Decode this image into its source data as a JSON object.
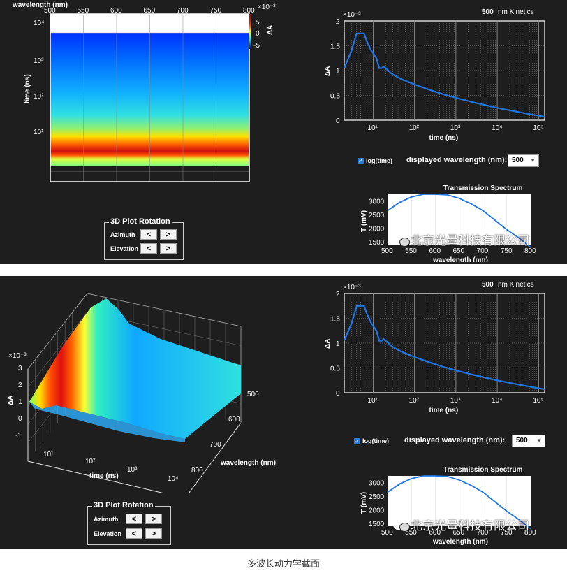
{
  "top_panel": {
    "heatmap": {
      "xlabel": "wavelength (nm)",
      "x_ticks": [
        "500",
        "550",
        "600",
        "650",
        "700",
        "750",
        "800"
      ],
      "ylabel": "time (ns)",
      "y_ticks": [
        "10⁴",
        "10³",
        "10²",
        "10¹"
      ],
      "colorbar_label": "ΔA",
      "colorbar_exponent": "×10⁻³",
      "colorbar_ticks": [
        "5",
        "0",
        "-5"
      ]
    },
    "kinetics": {
      "title_value": "500",
      "title_suffix": "nm Kinetics",
      "y_exponent": "×10⁻³",
      "ylabel": "ΔA",
      "xlabel": "time (ns)",
      "y_ticks": [
        "2",
        "1.5",
        "1",
        "0.5",
        "0"
      ],
      "x_ticks": [
        "10¹",
        "10²",
        "10³",
        "10⁴",
        "10⁵"
      ]
    },
    "controls": {
      "log_label": "log(time)",
      "log_checked": true,
      "wavelength_label": "displayed wavelength (nm):",
      "wavelength_value": "500"
    },
    "spectrum": {
      "title": "Transmission Spectrum",
      "ylabel": "T (mV)",
      "xlabel": "wavelength (nm)",
      "y_ticks": [
        "3000",
        "2500",
        "2000",
        "1500"
      ],
      "x_ticks": [
        "500",
        "550",
        "600",
        "650",
        "700",
        "750",
        "800"
      ]
    },
    "rotation": {
      "title": "3D Plot Rotation",
      "azimuth_label": "Azimuth",
      "elevation_label": "Elevation",
      "left_btn": "<",
      "right_btn": ">"
    },
    "watermark": "北京光量科技有限公司"
  },
  "bottom_panel": {
    "surface": {
      "zlabel": "ΔA",
      "z_exponent": "×10⁻³",
      "z_ticks": [
        "3",
        "2",
        "1",
        "0",
        "-1"
      ],
      "time_label": "time (ns)",
      "time_ticks": [
        "10¹",
        "10²",
        "10³",
        "10⁴"
      ],
      "wl_label": "wavelength (nm)",
      "wl_ticks": [
        "500",
        "600",
        "700",
        "800"
      ]
    },
    "kinetics": {
      "title_value": "500",
      "title_suffix": "nm Kinetics",
      "y_exponent": "×10⁻³",
      "ylabel": "ΔA",
      "xlabel": "time (ns)",
      "y_ticks": [
        "2",
        "1.5",
        "1",
        "0.5",
        "0"
      ],
      "x_ticks": [
        "10¹",
        "10²",
        "10³",
        "10⁴",
        "10⁵"
      ]
    },
    "controls": {
      "log_label": "log(time)",
      "log_checked": true,
      "wavelength_label": "displayed wavelength (nm):",
      "wavelength_value": "500"
    },
    "spectrum": {
      "title": "Transmission Spectrum",
      "ylabel": "T (mV)",
      "xlabel": "wavelength (nm)",
      "y_ticks": [
        "3000",
        "2500",
        "2000",
        "1500"
      ],
      "x_ticks": [
        "500",
        "550",
        "600",
        "650",
        "700",
        "750",
        "800"
      ]
    },
    "rotation": {
      "title": "3D Plot Rotation",
      "azimuth_label": "Azimuth",
      "elevation_label": "Elevation",
      "left_btn": "<",
      "right_btn": ">"
    },
    "watermark": "北京光量科技有限公司"
  },
  "caption": "多波长动力学截面",
  "colors": {
    "panel_bg": "#1e1e1e",
    "line": "#1f77e6",
    "grid": "#bdbdbd"
  },
  "chart_data": [
    {
      "type": "line",
      "ylabel": "ΔA",
      "xlabel": "time (ns)",
      "x_scale": "log",
      "xlim": [
        2,
        140000
      ],
      "ylim": [
        0,
        0.002
      ],
      "series": [
        {
          "x": [
            2,
            3,
            4,
            5,
            6,
            7,
            9,
            10,
            12,
            14,
            16,
            18,
            20,
            22,
            25,
            30,
            50,
            100,
            200,
            500,
            1000,
            3000,
            10000,
            30000,
            100000,
            140000
          ],
          "values": [
            0.00105,
            0.0014,
            0.00175,
            0.00175,
            0.00175,
            0.0016,
            0.0014,
            0.00135,
            0.00125,
            0.00105,
            0.00105,
            0.00108,
            0.00105,
            0.00102,
            0.00097,
            0.00092,
            0.00082,
            0.00072,
            0.00063,
            0.00052,
            0.00045,
            0.00035,
            0.00025,
            0.00017,
            9e-05,
            7e-05
          ]
        }
      ]
    },
    {
      "type": "line",
      "ylabel": "T (mV)",
      "xlabel": "wavelength (nm)",
      "xlim": [
        500,
        800
      ],
      "ylim": [
        1400,
        3250
      ],
      "series": [
        {
          "x": [
            500,
            525,
            550,
            575,
            600,
            625,
            650,
            675,
            700,
            725,
            750,
            775,
            800
          ],
          "values": [
            2650,
            2950,
            3150,
            3250,
            3260,
            3230,
            3100,
            2900,
            2650,
            2300,
            1950,
            1650,
            1300
          ]
        }
      ]
    },
    {
      "type": "heatmap",
      "xlabel": "wavelength (nm)",
      "ylabel": "time (ns)",
      "xlim": [
        500,
        800
      ],
      "y_scale": "log",
      "colorbar_range": [
        -5,
        5
      ]
    }
  ]
}
